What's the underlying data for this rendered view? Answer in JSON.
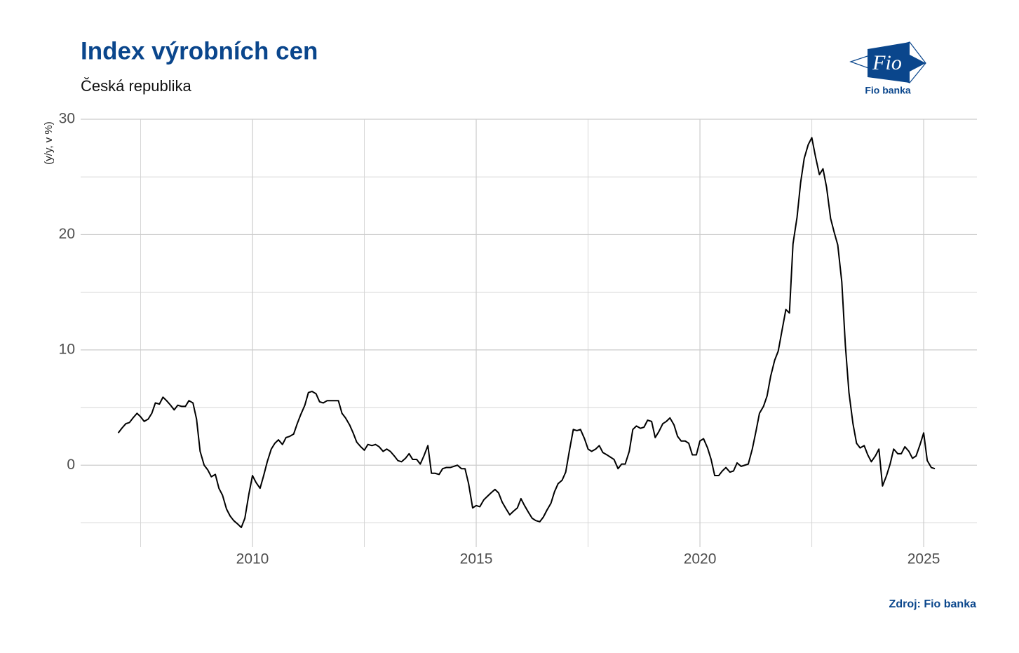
{
  "chart_data": {
    "type": "line",
    "title": "Index výrobních cen",
    "subtitle": "Česká republika",
    "y_label": "(y/y, v %)",
    "source": "Zdroj: Fio banka",
    "logo": {
      "mark": "Fio",
      "name": "Fio banka"
    },
    "xlim": [
      2006.16,
      2026.19
    ],
    "ylim": [
      -7.1,
      30
    ],
    "xticks": [
      2010,
      2015,
      2020,
      2025
    ],
    "xticks_minor": [
      2007.5,
      2012.5,
      2017.5,
      2022.5
    ],
    "yticks": [
      0,
      10,
      20,
      30
    ],
    "yticks_minor": [
      -5,
      5,
      15,
      25
    ],
    "grid": true,
    "x": [
      2007.0,
      2007.08,
      2007.17,
      2007.25,
      2007.33,
      2007.42,
      2007.5,
      2007.58,
      2007.67,
      2007.75,
      2007.83,
      2007.92,
      2008.0,
      2008.08,
      2008.17,
      2008.25,
      2008.33,
      2008.42,
      2008.5,
      2008.58,
      2008.67,
      2008.75,
      2008.83,
      2008.92,
      2009.0,
      2009.08,
      2009.17,
      2009.25,
      2009.33,
      2009.42,
      2009.5,
      2009.58,
      2009.67,
      2009.75,
      2009.83,
      2009.92,
      2010.0,
      2010.08,
      2010.17,
      2010.25,
      2010.33,
      2010.42,
      2010.5,
      2010.58,
      2010.67,
      2010.75,
      2010.83,
      2010.92,
      2011.0,
      2011.08,
      2011.17,
      2011.25,
      2011.33,
      2011.42,
      2011.5,
      2011.58,
      2011.67,
      2011.75,
      2011.83,
      2011.92,
      2012.0,
      2012.08,
      2012.17,
      2012.25,
      2012.33,
      2012.42,
      2012.5,
      2012.58,
      2012.67,
      2012.75,
      2012.83,
      2012.92,
      2013.0,
      2013.08,
      2013.17,
      2013.25,
      2013.33,
      2013.42,
      2013.5,
      2013.58,
      2013.67,
      2013.75,
      2013.83,
      2013.92,
      2014.0,
      2014.08,
      2014.17,
      2014.25,
      2014.33,
      2014.42,
      2014.5,
      2014.58,
      2014.67,
      2014.75,
      2014.83,
      2014.92,
      2015.0,
      2015.08,
      2015.17,
      2015.25,
      2015.33,
      2015.42,
      2015.5,
      2015.58,
      2015.67,
      2015.75,
      2015.83,
      2015.92,
      2016.0,
      2016.08,
      2016.17,
      2016.25,
      2016.33,
      2016.42,
      2016.5,
      2016.58,
      2016.67,
      2016.75,
      2016.83,
      2016.92,
      2017.0,
      2017.08,
      2017.17,
      2017.25,
      2017.33,
      2017.42,
      2017.5,
      2017.58,
      2017.67,
      2017.75,
      2017.83,
      2017.92,
      2018.0,
      2018.08,
      2018.17,
      2018.25,
      2018.33,
      2018.42,
      2018.5,
      2018.58,
      2018.67,
      2018.75,
      2018.83,
      2018.92,
      2019.0,
      2019.08,
      2019.17,
      2019.25,
      2019.33,
      2019.42,
      2019.5,
      2019.58,
      2019.67,
      2019.75,
      2019.83,
      2019.92,
      2020.0,
      2020.08,
      2020.17,
      2020.25,
      2020.33,
      2020.42,
      2020.5,
      2020.58,
      2020.67,
      2020.75,
      2020.83,
      2020.92,
      2021.0,
      2021.08,
      2021.17,
      2021.25,
      2021.33,
      2021.42,
      2021.5,
      2021.58,
      2021.67,
      2021.75,
      2021.83,
      2021.92,
      2022.0,
      2022.08,
      2022.17,
      2022.25,
      2022.33,
      2022.42,
      2022.5,
      2022.58,
      2022.67,
      2022.75,
      2022.83,
      2022.92,
      2023.0,
      2023.08,
      2023.17,
      2023.25,
      2023.33,
      2023.42,
      2023.5,
      2023.58,
      2023.67,
      2023.75,
      2023.83,
      2023.92,
      2024.0,
      2024.08,
      2024.17,
      2024.25,
      2024.33,
      2024.42,
      2024.5,
      2024.58,
      2024.67,
      2024.75,
      2024.83,
      2024.92,
      2025.0,
      2025.08,
      2025.17,
      2025.25
    ],
    "series": [
      {
        "color": "#000000",
        "values": [
          2.8,
          3.2,
          3.6,
          3.7,
          4.1,
          4.5,
          4.2,
          3.8,
          4.0,
          4.5,
          5.4,
          5.3,
          5.9,
          5.6,
          5.2,
          4.8,
          5.2,
          5.1,
          5.1,
          5.6,
          5.4,
          4.0,
          1.2,
          0.0,
          -0.4,
          -1.0,
          -0.8,
          -2.0,
          -2.6,
          -3.8,
          -4.4,
          -4.8,
          -5.1,
          -5.4,
          -4.6,
          -2.5,
          -0.9,
          -1.5,
          -2.0,
          -0.9,
          0.3,
          1.4,
          1.9,
          2.2,
          1.8,
          2.4,
          2.5,
          2.7,
          3.6,
          4.4,
          5.2,
          6.3,
          6.4,
          6.2,
          5.5,
          5.4,
          5.6,
          5.6,
          5.6,
          5.6,
          4.5,
          4.1,
          3.5,
          2.8,
          2.0,
          1.6,
          1.3,
          1.8,
          1.7,
          1.8,
          1.6,
          1.2,
          1.4,
          1.2,
          0.8,
          0.4,
          0.3,
          0.6,
          1.0,
          0.5,
          0.5,
          0.1,
          0.8,
          1.7,
          -0.7,
          -0.7,
          -0.8,
          -0.3,
          -0.2,
          -0.2,
          -0.1,
          0.0,
          -0.3,
          -0.3,
          -1.6,
          -3.7,
          -3.5,
          -3.6,
          -3.0,
          -2.7,
          -2.4,
          -2.1,
          -2.4,
          -3.2,
          -3.8,
          -4.3,
          -4.0,
          -3.7,
          -2.9,
          -3.5,
          -4.1,
          -4.6,
          -4.8,
          -4.9,
          -4.5,
          -3.9,
          -3.3,
          -2.3,
          -1.6,
          -1.3,
          -0.6,
          1.2,
          3.1,
          3.0,
          3.1,
          2.3,
          1.4,
          1.2,
          1.4,
          1.7,
          1.1,
          0.9,
          0.7,
          0.5,
          -0.3,
          0.1,
          0.1,
          1.2,
          3.1,
          3.4,
          3.2,
          3.3,
          3.9,
          3.8,
          2.4,
          2.9,
          3.6,
          3.8,
          4.1,
          3.5,
          2.5,
          2.1,
          2.1,
          1.9,
          0.9,
          0.9,
          2.1,
          2.3,
          1.5,
          0.5,
          -0.9,
          -0.9,
          -0.5,
          -0.2,
          -0.6,
          -0.5,
          0.2,
          -0.1,
          0.0,
          0.1,
          1.4,
          2.9,
          4.5,
          5.1,
          6.0,
          7.7,
          9.1,
          9.9,
          11.6,
          13.5,
          13.2,
          19.2,
          21.5,
          24.5,
          26.6,
          27.8,
          28.4,
          26.8,
          25.2,
          25.7,
          24.1,
          21.4,
          20.2,
          19.1,
          15.9,
          10.4,
          6.3,
          3.6,
          1.9,
          1.5,
          1.7,
          0.9,
          0.3,
          0.8,
          1.4,
          -1.8,
          -0.9,
          0.1,
          1.4,
          1.0,
          1.0,
          1.6,
          1.2,
          0.6,
          0.8,
          1.8,
          2.8,
          0.4,
          -0.2,
          -0.3
        ]
      }
    ]
  }
}
